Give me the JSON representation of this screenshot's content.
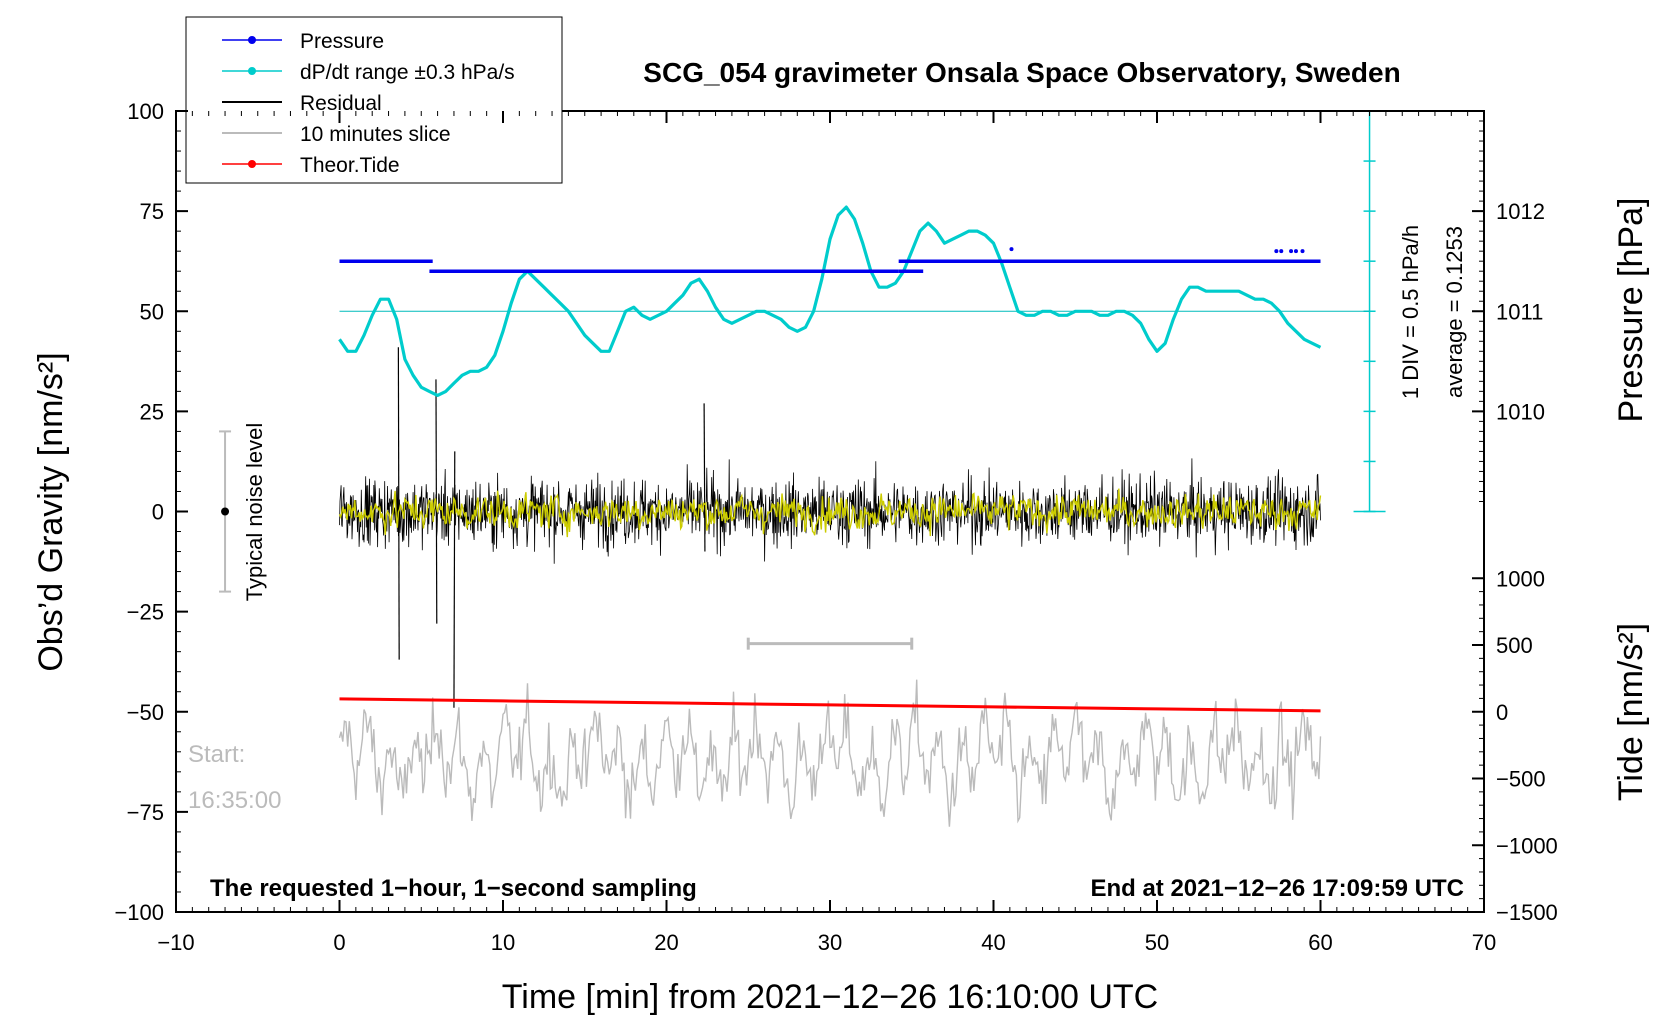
{
  "chart_data": {
    "type": "line",
    "title": "SCG_054 gravimeter Onsala Space Observatory, Sweden",
    "xlabel": "Time [min] from 2021−12−26 16:10:00 UTC",
    "ylabel_left": "Obs’d Gravity [nm/s²]",
    "ylabel_right_pressure": "Pressure [hPa]",
    "ylabel_right_tide": "Tide [nm/s²]",
    "xlim": [
      -10,
      70
    ],
    "ylim_left": [
      -100,
      100
    ],
    "xticks": [
      -10,
      0,
      10,
      20,
      30,
      40,
      50,
      60,
      70
    ],
    "xtick_labels": [
      "−10",
      "0",
      "10",
      "20",
      "30",
      "40",
      "50",
      "60",
      "70"
    ],
    "yticks_left": [
      100,
      75,
      50,
      25,
      0,
      -25,
      -50,
      -75,
      -100
    ],
    "ytick_labels_left": [
      "100",
      "75",
      "50",
      "25",
      "0",
      "−25",
      "−50",
      "−75",
      "−100"
    ],
    "pressure_ticks": [
      1012,
      1011,
      1010
    ],
    "pressure_tick_labels": [
      "1012",
      "1011",
      "1010"
    ],
    "tide_ticks": [
      1000,
      500,
      0,
      -500,
      -1000,
      -1500
    ],
    "tide_tick_labels": [
      "1000",
      "500",
      "0",
      "−500",
      "−1000",
      "−1500"
    ],
    "legend": [
      {
        "label": "Pressure",
        "color": "#0000ee",
        "marker": true
      },
      {
        "label": "dP/dt range ±0.3 hPa/s",
        "color": "#00cccc",
        "marker": true
      },
      {
        "label": "Residual",
        "color": "#000000",
        "marker": false
      },
      {
        "label": "10 minutes slice",
        "color": "#bbbbbb",
        "marker": false
      },
      {
        "label": "Theor.Tide",
        "color": "#ff0000",
        "marker": true
      }
    ],
    "pressure_scale_note": "1 DIV = 0.5 hPa/h",
    "pressure_average_note": "average = 0.1253",
    "noise_level_label": "Typical noise level",
    "noise_level_range": [
      -20,
      20
    ],
    "slice_start_label": "Start:",
    "slice_start_time": "16:35:00",
    "slice_range_min": [
      25,
      35
    ],
    "footer_left": "The requested 1−hour, 1−second sampling",
    "footer_right": "End at 2021−12−26 17:09:59 UTC",
    "series": [
      {
        "name": "Pressure",
        "color": "#0000ee",
        "segments": [
          {
            "x0": 0,
            "x1": 5.7,
            "y": 62.5
          },
          {
            "x0": 5.5,
            "x1": 34.2,
            "y": 60
          },
          {
            "x0": 34.2,
            "x1": 35.7,
            "y": 60
          },
          {
            "x0": 34.2,
            "x1": 60,
            "y": 62.5
          }
        ],
        "dots": [
          [
            41.1,
            65.5
          ],
          [
            57.3,
            65
          ],
          [
            57.6,
            65
          ],
          [
            58.2,
            65
          ],
          [
            58.5,
            65
          ],
          [
            58.9,
            65
          ]
        ]
      },
      {
        "name": "dP/dt range",
        "color": "#00cccc",
        "x": [
          0,
          0.5,
          1,
          1.5,
          2,
          2.5,
          3,
          3.5,
          4,
          4.5,
          5,
          5.5,
          6,
          6.5,
          7,
          7.5,
          8,
          8.5,
          9,
          9.5,
          10,
          10.5,
          11,
          11.5,
          12,
          12.5,
          13,
          13.5,
          14,
          14.5,
          15,
          15.5,
          16,
          16.5,
          17,
          17.5,
          18,
          18.5,
          19,
          19.5,
          20,
          20.5,
          21,
          21.5,
          22,
          22.5,
          23,
          23.5,
          24,
          24.5,
          25,
          25.5,
          26,
          26.5,
          27,
          27.5,
          28,
          28.5,
          29,
          29.5,
          30,
          30.5,
          31,
          31.5,
          32,
          32.5,
          33,
          33.5,
          34,
          34.5,
          35,
          35.5,
          36,
          36.5,
          37,
          37.5,
          38,
          38.5,
          39,
          39.5,
          40,
          40.5,
          41,
          41.5,
          42,
          42.5,
          43,
          43.5,
          44,
          44.5,
          45,
          45.5,
          46,
          46.5,
          47,
          47.5,
          48,
          48.5,
          49,
          49.5,
          50,
          50.5,
          51,
          51.5,
          52,
          52.5,
          53,
          53.5,
          54,
          54.5,
          55,
          55.5,
          56,
          56.5,
          57,
          57.5,
          58,
          58.5,
          59,
          59.5,
          60
        ],
        "values": [
          43,
          40,
          40,
          44,
          49,
          53,
          53,
          48,
          38,
          34,
          31,
          30,
          29,
          30,
          32,
          34,
          35,
          35,
          36,
          39,
          45,
          52,
          58,
          60,
          58,
          56,
          54,
          52,
          50,
          47,
          44,
          42,
          40,
          40,
          45,
          50,
          51,
          49,
          48,
          49,
          50,
          52,
          54,
          57,
          58,
          55,
          51,
          48,
          47,
          48,
          49,
          50,
          50,
          49,
          48,
          46,
          45,
          46,
          50,
          58,
          68,
          74,
          76,
          73,
          67,
          60,
          56,
          56,
          57,
          60,
          65,
          70,
          72,
          70,
          67,
          68,
          69,
          70,
          70,
          69,
          67,
          62,
          56,
          50,
          49,
          49,
          50,
          50,
          49,
          49,
          50,
          50,
          50,
          49,
          49,
          50,
          50,
          49,
          47,
          43,
          40,
          42,
          48,
          53,
          56,
          56,
          55,
          55,
          55,
          55,
          55,
          54,
          53,
          53,
          52,
          50,
          47,
          45,
          43,
          42,
          41
        ]
      },
      {
        "name": "Residual",
        "color": "#000000",
        "sampling": "1 s",
        "range_nm_s2": [
          -25,
          25
        ]
      },
      {
        "name": "10 minutes slice",
        "color": "#bbbbbb",
        "range_nm_s2": [
          -85,
          -42
        ]
      },
      {
        "name": "Theor.Tide",
        "color": "#ff0000",
        "x": [
          0,
          10,
          20,
          30,
          40,
          50,
          60
        ],
        "values": [
          -46.8,
          -47.3,
          -47.8,
          -48.3,
          -48.8,
          -49.3,
          -49.8
        ]
      }
    ],
    "pressure_reference_y": 50
  }
}
